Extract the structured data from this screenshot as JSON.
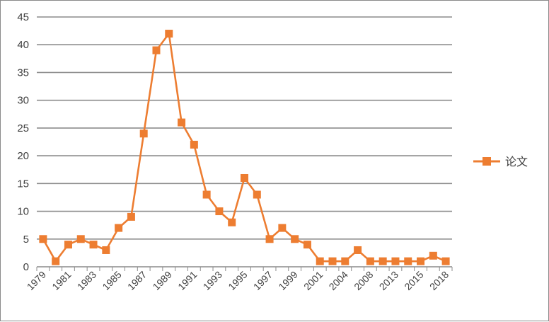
{
  "chart_data": {
    "type": "line",
    "x": [
      "1979",
      "1980",
      "1981",
      "1982",
      "1983",
      "1984",
      "1985",
      "1986",
      "1987",
      "1988",
      "1989",
      "1990",
      "1991",
      "1992",
      "1993",
      "1994",
      "1995",
      "1996",
      "1997",
      "1998",
      "1999",
      "2000",
      "2001",
      "2002",
      "2004",
      "2006",
      "2008",
      "2010",
      "2013",
      "2014",
      "2015",
      "2016",
      "2018"
    ],
    "tick_labels": [
      "1979",
      "1981",
      "1983",
      "1985",
      "1987",
      "1989",
      "1991",
      "1993",
      "1995",
      "1997",
      "1999",
      "2001",
      "2004",
      "2008",
      "2013",
      "2015",
      "2018"
    ],
    "series": [
      {
        "name": "论文",
        "values": [
          5,
          1,
          4,
          5,
          4,
          3,
          7,
          9,
          24,
          39,
          42,
          26,
          22,
          13,
          10,
          8,
          16,
          13,
          5,
          7,
          5,
          4,
          1,
          1,
          1,
          3,
          1,
          1,
          1,
          1,
          1,
          2,
          1
        ],
        "color": "#ED7D31",
        "marker": "square"
      }
    ],
    "ylim": [
      0,
      45
    ],
    "yticks": [
      0,
      5,
      10,
      15,
      20,
      25,
      30,
      35,
      40,
      45
    ],
    "grid": "horizontal",
    "legend_position": "right",
    "title": "",
    "xlabel": "",
    "ylabel": ""
  }
}
